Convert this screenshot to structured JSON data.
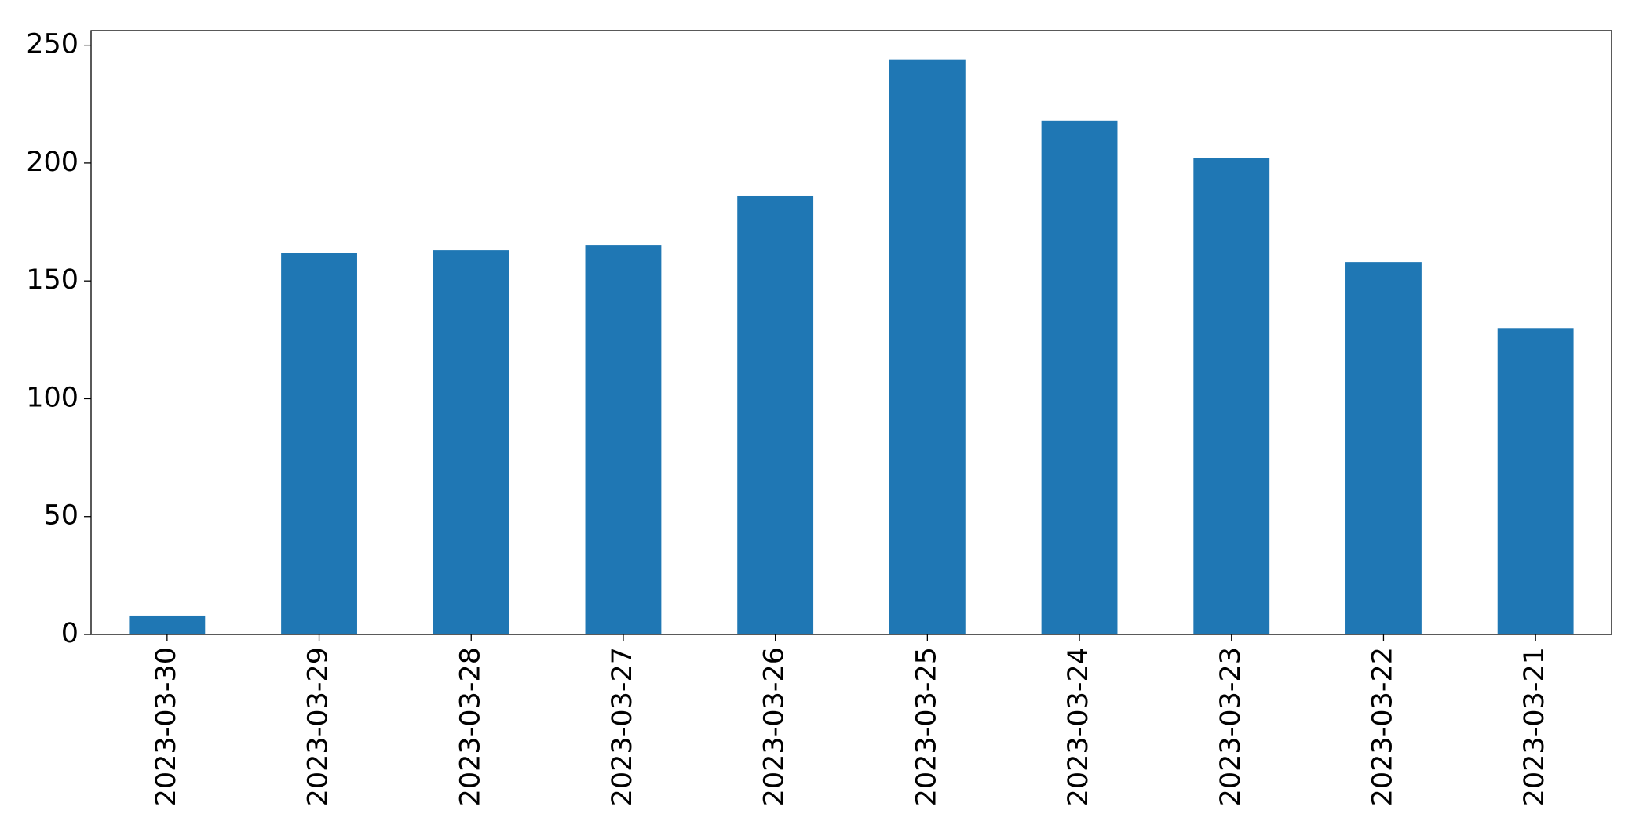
{
  "chart_data": {
    "type": "bar",
    "categories": [
      "2023-03-30",
      "2023-03-29",
      "2023-03-28",
      "2023-03-27",
      "2023-03-26",
      "2023-03-25",
      "2023-03-24",
      "2023-03-23",
      "2023-03-22",
      "2023-03-21"
    ],
    "values": [
      8,
      162,
      163,
      165,
      186,
      244,
      218,
      202,
      158,
      130
    ],
    "color": "#1f77b4",
    "ylim": [
      0,
      256.2
    ],
    "yticks": [
      0,
      50,
      100,
      150,
      200,
      250
    ],
    "grid": false
  }
}
